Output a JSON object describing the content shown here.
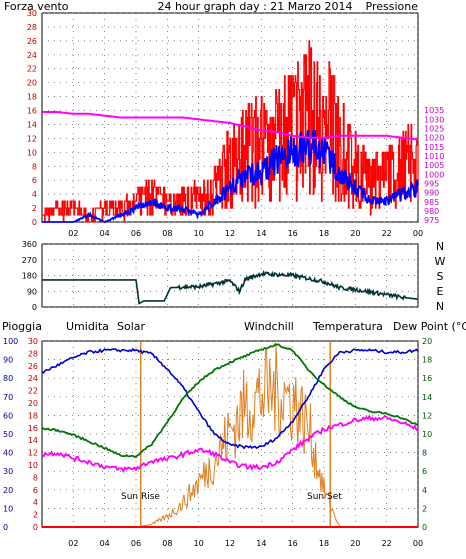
{
  "header": {
    "left_title": "Forza vento",
    "center_title": "24 hour graph day : 21 Marzo 2014",
    "right_title": "Pressione"
  },
  "lower_header": {
    "pioggia": "Pioggia",
    "umidita": "Umidita",
    "solar": "Solar",
    "windchill": "Windchill",
    "temperatura": "Temperatura",
    "dewpoint": "Dew Point (°C)"
  },
  "annotations": {
    "sunrise": "Sun Rise",
    "sunset": "Sun Set"
  },
  "colors": {
    "wind_gust": "#ff0000",
    "wind_avg": "#0000ff",
    "pressure": "#ff00ff",
    "wind_dir": "#003333",
    "humidity": "#0000cc",
    "solar": "#e07f20",
    "temperature": "#007700",
    "dewpoint": "#ff00ff",
    "rain": "#ff0000",
    "grid": "#555555"
  },
  "chart_data": [
    {
      "type": "line",
      "name": "wind-pressure",
      "x_ticks": [
        "02",
        "04",
        "06",
        "08",
        "10",
        "12",
        "14",
        "16",
        "18",
        "20",
        "22",
        "00"
      ],
      "ylim_left": [
        0,
        30
      ],
      "y_ticks_left": [
        "0",
        "2",
        "4",
        "6",
        "8",
        "10",
        "12",
        "14",
        "16",
        "18",
        "20",
        "22",
        "24",
        "26",
        "28",
        "30"
      ],
      "ylim_right": [
        974,
        1088
      ],
      "y_ticks_right": [
        "975",
        "980",
        "985",
        "990",
        "995",
        "1000",
        "1005",
        "1010",
        "1015",
        "1020",
        "1025",
        "1030",
        "1035"
      ],
      "x": [
        0,
        1,
        2,
        3,
        4,
        5,
        6,
        7,
        8,
        9,
        10,
        11,
        12,
        13,
        14,
        15,
        16,
        17,
        18,
        19,
        20,
        21,
        22,
        23,
        24
      ],
      "series": [
        {
          "key": "gust",
          "values": [
            1,
            2,
            2,
            1,
            2,
            2,
            3,
            4,
            3,
            3,
            4,
            5,
            9,
            11,
            12,
            13,
            15,
            17,
            16,
            12,
            8,
            6,
            7,
            9,
            9
          ]
        },
        {
          "key": "average",
          "values": [
            0,
            0,
            0,
            1,
            0,
            1,
            2,
            3,
            2,
            2,
            1,
            3,
            5,
            7,
            7,
            9,
            10,
            11,
            10,
            7,
            5,
            3,
            3,
            4,
            5
          ]
        },
        {
          "key": "pressure",
          "values": [
            1034,
            1034,
            1033,
            1033,
            1032,
            1031,
            1031,
            1031,
            1031,
            1031,
            1030,
            1029,
            1028,
            1026,
            1024,
            1023,
            1021,
            1020,
            1020,
            1021,
            1021,
            1021,
            1021,
            1020,
            1019
          ]
        }
      ]
    },
    {
      "type": "line",
      "name": "wind-direction",
      "x_ticks": [
        "02",
        "04",
        "06",
        "08",
        "10",
        "12",
        "14",
        "16",
        "18",
        "20",
        "22",
        "00"
      ],
      "ylim_left": [
        0,
        360
      ],
      "y_ticks_left": [
        "0",
        "90",
        "180",
        "270",
        "360"
      ],
      "right_labels": [
        "N",
        "W",
        "S",
        "E",
        "N"
      ],
      "x": [
        0,
        6,
        6.2,
        6.5,
        7.8,
        8.2,
        9,
        10,
        12,
        12.6,
        13,
        14,
        16,
        18,
        19,
        20,
        22,
        23,
        24
      ],
      "values": [
        155,
        155,
        20,
        35,
        35,
        110,
        115,
        115,
        150,
        90,
        160,
        190,
        180,
        145,
        110,
        100,
        70,
        55,
        45
      ]
    },
    {
      "type": "line",
      "name": "temperature-humidity",
      "x_ticks": [
        "02",
        "04",
        "06",
        "08",
        "10",
        "12",
        "14",
        "16",
        "18",
        "20",
        "22",
        "00"
      ],
      "y_ticks_humidity": [
        "0",
        "10",
        "20",
        "30",
        "40",
        "50",
        "60",
        "70",
        "80",
        "90",
        "100"
      ],
      "y_ticks_rain": [
        "0",
        "2",
        "4",
        "6",
        "8",
        "10",
        "12",
        "14",
        "16",
        "18",
        "20",
        "22",
        "24",
        "26",
        "28",
        "30"
      ],
      "ylim_temperature": [
        0,
        20
      ],
      "y_ticks_temperature": [
        "0",
        "2",
        "4",
        "6",
        "8",
        "10",
        "12",
        "14",
        "16",
        "18",
        "20"
      ],
      "x": [
        0,
        1,
        2,
        3,
        4,
        5,
        6,
        7,
        8,
        9,
        10,
        11,
        12,
        13,
        14,
        15,
        16,
        17,
        18,
        19,
        20,
        21,
        22,
        23,
        24
      ],
      "series": [
        {
          "key": "humidity",
          "values": [
            83,
            87,
            91,
            94,
            95,
            95,
            95,
            93,
            85,
            75,
            62,
            50,
            44,
            43,
            43,
            48,
            57,
            70,
            85,
            94,
            95,
            95,
            94,
            94,
            95
          ]
        },
        {
          "key": "solar",
          "values": [
            0,
            0,
            0,
            0,
            0,
            0,
            0,
            10,
            40,
            90,
            170,
            250,
            360,
            460,
            500,
            520,
            480,
            380,
            140,
            0,
            0,
            0,
            0,
            0,
            0
          ]
        },
        {
          "key": "temperature",
          "values": [
            10.6,
            10.4,
            9.9,
            9.2,
            8.5,
            7.7,
            7.6,
            8.9,
            11.3,
            13.8,
            15.6,
            16.9,
            17.7,
            18.4,
            19.1,
            19.6,
            19.0,
            16.9,
            15.3,
            14.0,
            12.9,
            12.4,
            12.2,
            11.7,
            10.9
          ]
        },
        {
          "key": "dewpoint",
          "values": [
            7.8,
            8.0,
            7.4,
            7.0,
            6.5,
            6.2,
            6.3,
            7.1,
            7.3,
            7.8,
            8.3,
            7.9,
            6.9,
            6.5,
            6.4,
            7.0,
            8.3,
            9.5,
            10.5,
            11.0,
            11.5,
            11.7,
            11.7,
            11.2,
            10.5
          ]
        },
        {
          "key": "rain",
          "values": [
            0,
            0,
            0,
            0,
            0,
            0,
            0,
            0,
            0,
            0,
            0,
            0,
            0,
            0,
            0,
            0,
            0,
            0,
            0,
            0,
            0,
            0,
            0,
            0,
            0
          ]
        }
      ],
      "sunrise_hour": 6.3,
      "sunset_hour": 18.4
    }
  ]
}
